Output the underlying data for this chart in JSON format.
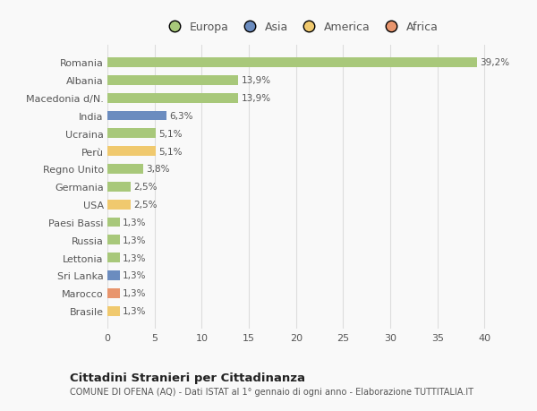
{
  "categories": [
    "Romania",
    "Albania",
    "Macedonia d/N.",
    "India",
    "Ucraina",
    "Perù",
    "Regno Unito",
    "Germania",
    "USA",
    "Paesi Bassi",
    "Russia",
    "Lettonia",
    "Sri Lanka",
    "Marocco",
    "Brasile"
  ],
  "values": [
    39.2,
    13.9,
    13.9,
    6.3,
    5.1,
    5.1,
    3.8,
    2.5,
    2.5,
    1.3,
    1.3,
    1.3,
    1.3,
    1.3,
    1.3
  ],
  "labels": [
    "39,2%",
    "13,9%",
    "13,9%",
    "6,3%",
    "5,1%",
    "5,1%",
    "3,8%",
    "2,5%",
    "2,5%",
    "1,3%",
    "1,3%",
    "1,3%",
    "1,3%",
    "1,3%",
    "1,3%"
  ],
  "colors": [
    "#a8c87a",
    "#a8c87a",
    "#a8c87a",
    "#6b8cbf",
    "#a8c87a",
    "#f0c96e",
    "#a8c87a",
    "#a8c87a",
    "#f0c96e",
    "#a8c87a",
    "#a8c87a",
    "#a8c87a",
    "#6b8cbf",
    "#e8956d",
    "#f0c96e"
  ],
  "legend_labels": [
    "Europa",
    "Asia",
    "America",
    "Africa"
  ],
  "legend_colors": [
    "#a8c87a",
    "#6b8cbf",
    "#f0c96e",
    "#e8956d"
  ],
  "xlim": [
    0,
    41
  ],
  "xticks": [
    0,
    5,
    10,
    15,
    20,
    25,
    30,
    35,
    40
  ],
  "title": "Cittadini Stranieri per Cittadinanza",
  "subtitle": "COMUNE DI OFENA (AQ) - Dati ISTAT al 1° gennaio di ogni anno - Elaborazione TUTTITALIA.IT",
  "bg_color": "#f9f9f9",
  "grid_color": "#dddddd",
  "bar_height": 0.55
}
